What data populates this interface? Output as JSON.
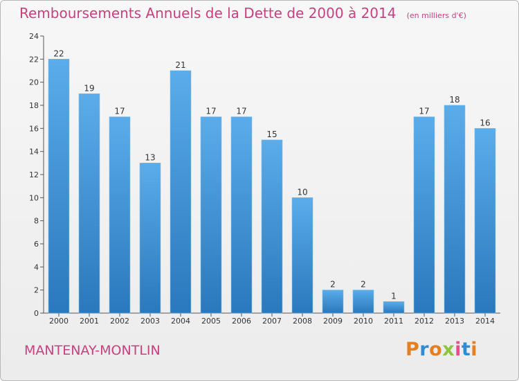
{
  "header": {
    "title": "Remboursements Annuels de la Dette de 2000 à 2014",
    "unit": "(en milliers d'€)"
  },
  "footer": {
    "commune": "MANTENAY-MONTLIN",
    "logo_text": "Proxiti"
  },
  "colors": {
    "title": "#c8407f",
    "bar_top": "#5aacea",
    "bar_bottom": "#2a78bd",
    "logo_letters": [
      "#e67e22",
      "#2f8bd6",
      "#e67e22",
      "#8cc63f",
      "#e84c8b",
      "#2f8bd6",
      "#e67e22"
    ]
  },
  "chart_data": {
    "type": "bar",
    "title": "Remboursements Annuels de la Dette de 2000 à 2014",
    "xlabel": "",
    "ylabel": "",
    "categories": [
      "2000",
      "2001",
      "2002",
      "2003",
      "2004",
      "2005",
      "2006",
      "2007",
      "2008",
      "2009",
      "2010",
      "2011",
      "2012",
      "2013",
      "2014"
    ],
    "values": [
      22,
      19,
      17,
      13,
      21,
      17,
      17,
      15,
      10,
      2,
      2,
      1,
      17,
      18,
      16
    ],
    "ylim": [
      0,
      24
    ],
    "yticks": [
      0,
      2,
      4,
      6,
      8,
      10,
      12,
      14,
      16,
      18,
      20,
      22,
      24
    ],
    "grid": false,
    "data_labels": true
  }
}
